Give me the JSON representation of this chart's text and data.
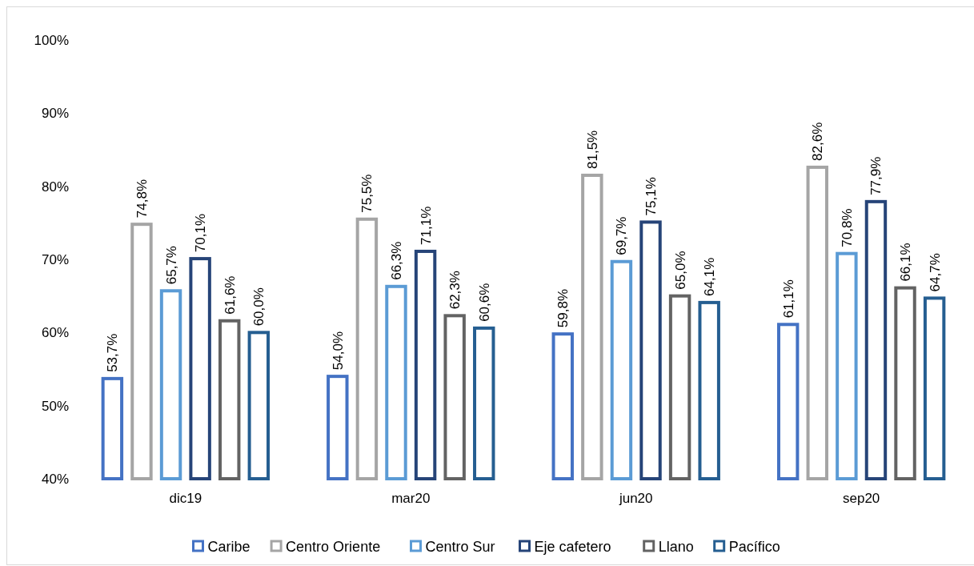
{
  "chart_data": {
    "type": "bar",
    "categories": [
      "dic19",
      "mar20",
      "jun20",
      "sep20"
    ],
    "series": [
      {
        "name": "Caribe",
        "color": "#4472c4",
        "values": [
          53.7,
          54.0,
          59.8,
          61.1
        ],
        "value_labels": [
          "53,7%",
          "54,0%",
          "59,8%",
          "61,1%"
        ]
      },
      {
        "name": "Centro Oriente",
        "color": "#a5a5a5",
        "values": [
          74.8,
          75.5,
          81.5,
          82.6
        ],
        "value_labels": [
          "74,8%",
          "75,5%",
          "81,5%",
          "82,6%"
        ]
      },
      {
        "name": "Centro Sur",
        "color": "#5b9bd5",
        "values": [
          65.7,
          66.3,
          69.7,
          70.8
        ],
        "value_labels": [
          "65,7%",
          "66,3%",
          "69,7%",
          "70,8%"
        ]
      },
      {
        "name": "Eje cafetero",
        "color": "#264478",
        "values": [
          70.1,
          71.1,
          75.1,
          77.9
        ],
        "value_labels": [
          "70,1%",
          "71,1%",
          "75,1%",
          "77,9%"
        ]
      },
      {
        "name": "Llano",
        "color": "#636363",
        "values": [
          61.6,
          62.3,
          65.0,
          66.1
        ],
        "value_labels": [
          "61,6%",
          "62,3%",
          "65,0%",
          "66,1%"
        ]
      },
      {
        "name": "Pacífico",
        "color": "#255e91",
        "values": [
          60.0,
          60.6,
          64.1,
          64.7
        ],
        "value_labels": [
          "60,0%",
          "60,6%",
          "64,1%",
          "64,7%"
        ]
      }
    ],
    "ylim": [
      40,
      100
    ],
    "yticks": [
      {
        "value": 40,
        "label": "40%"
      },
      {
        "value": 50,
        "label": "50%"
      },
      {
        "value": 60,
        "label": "60%"
      },
      {
        "value": 70,
        "label": "70%"
      },
      {
        "value": 80,
        "label": "80%"
      },
      {
        "value": 90,
        "label": "90%"
      },
      {
        "value": 100,
        "label": "100%"
      }
    ],
    "grid": false,
    "legend": "bottom"
  }
}
